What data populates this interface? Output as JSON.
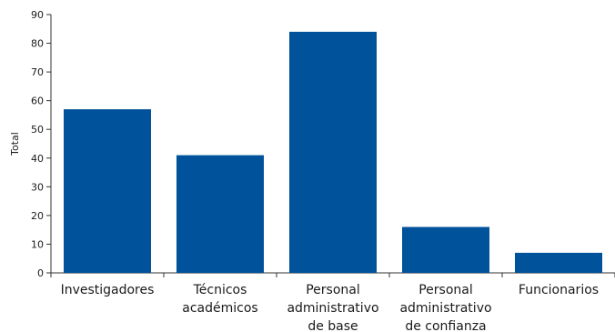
{
  "chart_data": {
    "type": "bar",
    "ylabel": "Total",
    "ylim": [
      0,
      90
    ],
    "yticks": [
      0,
      10,
      20,
      30,
      40,
      50,
      60,
      70,
      80,
      90
    ],
    "grid": false,
    "legend": "none",
    "bar_color": "#00529b",
    "categories": [
      "Investigadores",
      "Técnicos académicos",
      "Personal administrativo de base",
      "Personal administrativo de confianza",
      "Funcionarios"
    ],
    "category_lines": [
      [
        "Investigadores"
      ],
      [
        "Técnicos",
        "académicos"
      ],
      [
        "Personal",
        "administrativo",
        "de base"
      ],
      [
        "Personal",
        "administrativo",
        "de confianza"
      ],
      [
        "Funcionarios"
      ]
    ],
    "values": [
      57,
      41,
      84,
      16,
      7
    ]
  }
}
